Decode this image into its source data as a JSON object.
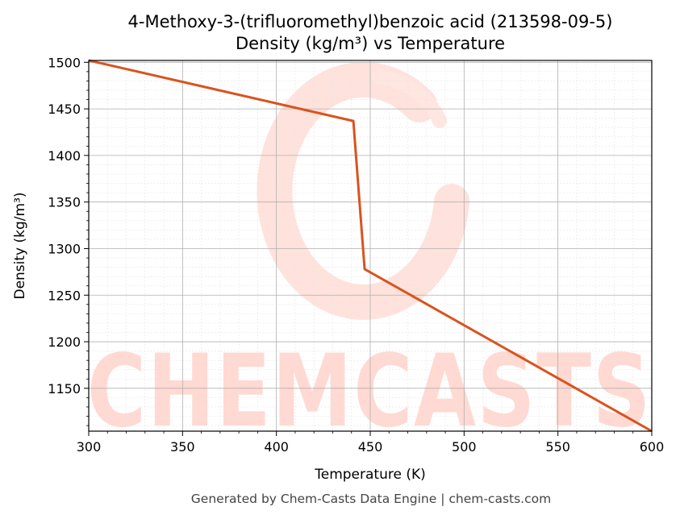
{
  "chart_data": {
    "type": "line",
    "title": "4-Methoxy-3-(trifluoromethyl)benzoic acid (213598-09-5)",
    "subtitle": "Density (kg/m³) vs Temperature",
    "xlabel": "Temperature (K)",
    "ylabel": "Density (kg/m³)",
    "xlim": [
      300,
      600
    ],
    "ylim": [
      1104,
      1502
    ],
    "xticks": [
      300,
      350,
      400,
      450,
      500,
      550,
      600
    ],
    "yticks": [
      1150,
      1200,
      1250,
      1300,
      1350,
      1400,
      1450,
      1500
    ],
    "grid": true,
    "series": [
      {
        "color": "#d9531e",
        "x": [
          300,
          441,
          447,
          600
        ],
        "y": [
          1502,
          1437,
          1278,
          1104
        ]
      }
    ]
  },
  "watermark": {
    "text": "CHEMCASTS",
    "color": "#ffd9d2"
  },
  "footer": {
    "text": "Generated by Chem-Casts Data Engine | chem-casts.com"
  }
}
